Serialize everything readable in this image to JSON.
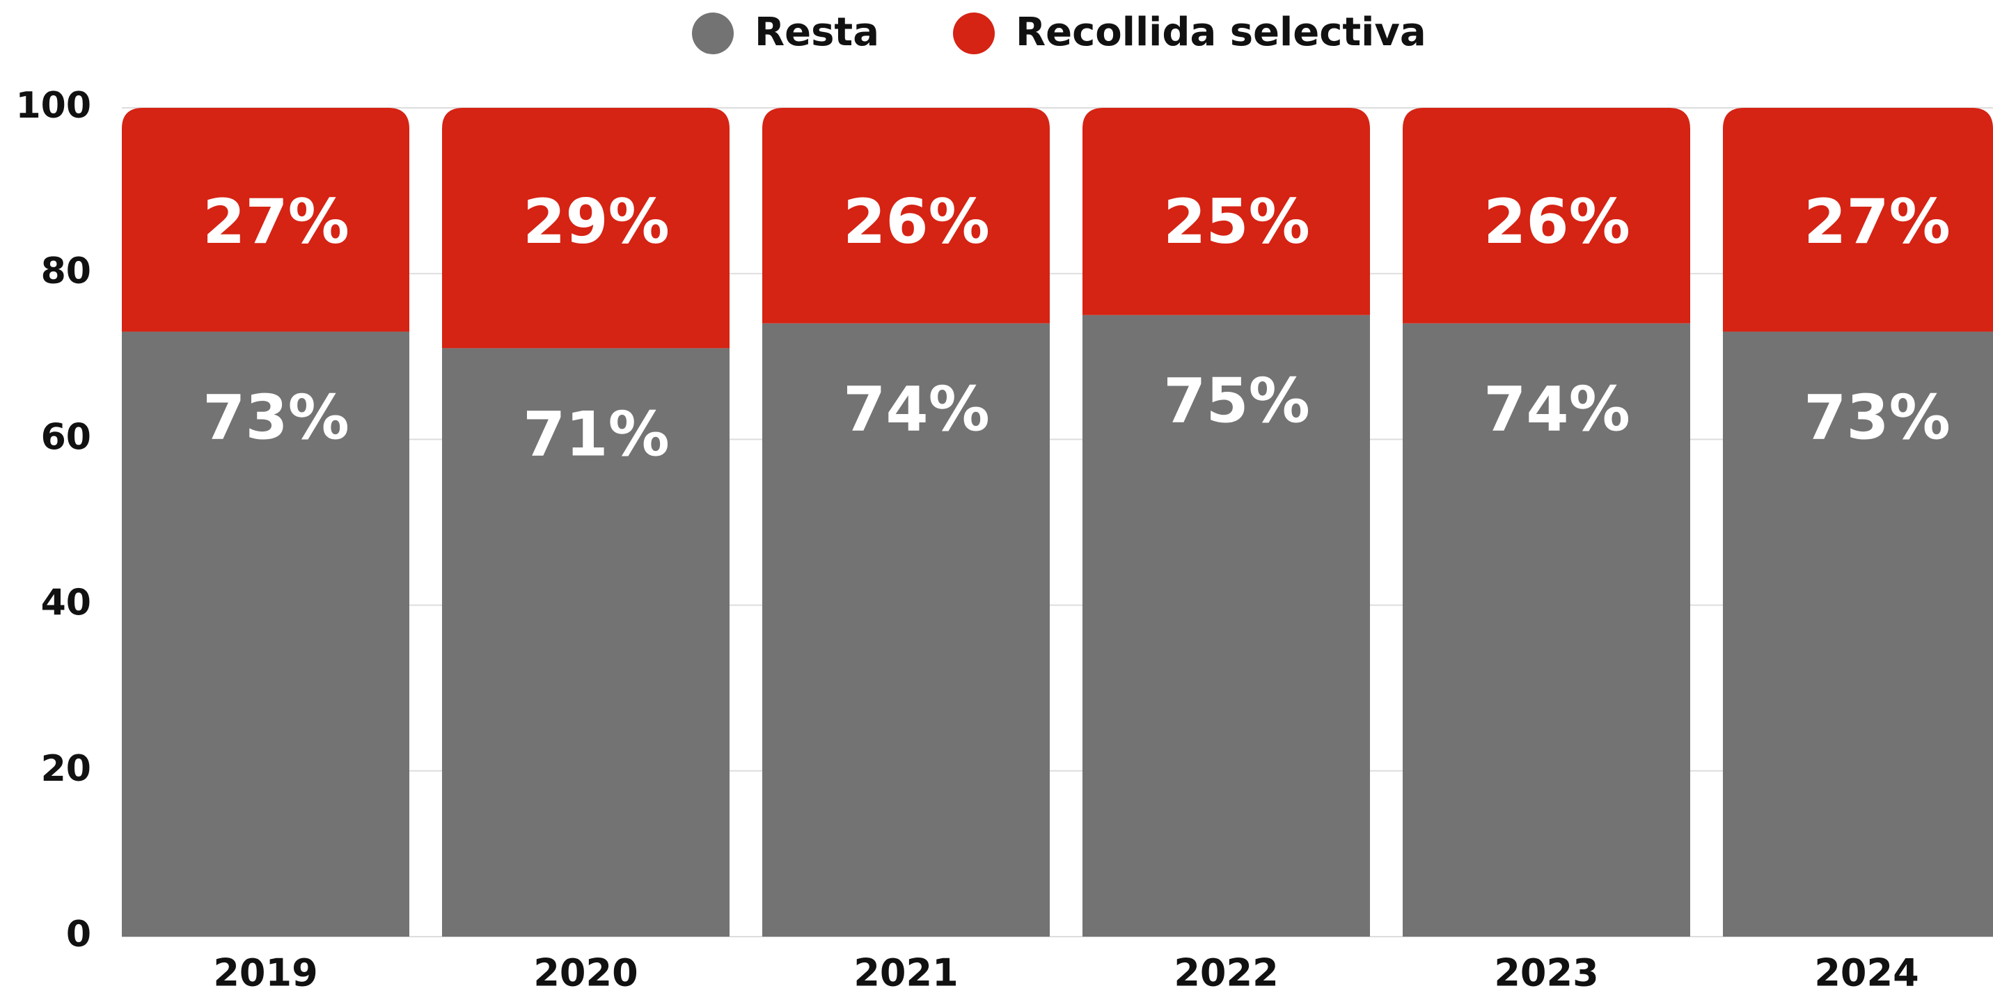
{
  "chart_data": {
    "type": "stacked_bar",
    "categories": [
      "2019",
      "2020",
      "2021",
      "2022",
      "2023",
      "2024"
    ],
    "series": [
      {
        "name": "Resta",
        "color": "#737373",
        "values": [
          73,
          71,
          74,
          75,
          74,
          73
        ],
        "value_labels": [
          "73%",
          "71%",
          "74%",
          "75%",
          "74%",
          "73%"
        ]
      },
      {
        "name": "Recollida selectiva",
        "color": "#d52314",
        "values": [
          27,
          29,
          26,
          25,
          26,
          27
        ],
        "value_labels": [
          "27%",
          "29%",
          "26%",
          "25%",
          "26%",
          "27%"
        ]
      }
    ],
    "ylim": [
      0,
      100
    ],
    "yticks": [
      0,
      20,
      40,
      60,
      80,
      100
    ],
    "grid": true,
    "legend": "top"
  }
}
